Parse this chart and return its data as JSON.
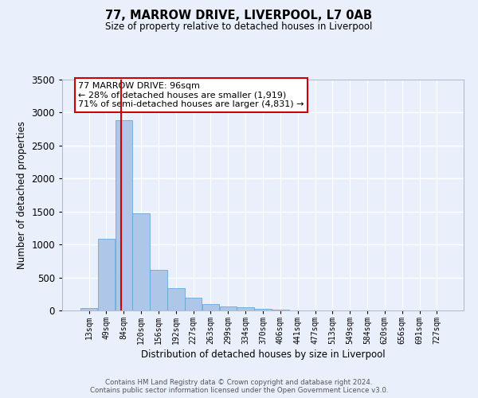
{
  "title": "77, MARROW DRIVE, LIVERPOOL, L7 0AB",
  "subtitle": "Size of property relative to detached houses in Liverpool",
  "xlabel": "Distribution of detached houses by size in Liverpool",
  "ylabel": "Number of detached properties",
  "bin_labels": [
    "13sqm",
    "49sqm",
    "84sqm",
    "120sqm",
    "156sqm",
    "192sqm",
    "227sqm",
    "263sqm",
    "299sqm",
    "334sqm",
    "370sqm",
    "406sqm",
    "441sqm",
    "477sqm",
    "513sqm",
    "549sqm",
    "584sqm",
    "620sqm",
    "656sqm",
    "691sqm",
    "727sqm"
  ],
  "bar_heights": [
    40,
    1090,
    2880,
    1470,
    615,
    335,
    195,
    95,
    65,
    45,
    20,
    15,
    0,
    0,
    0,
    0,
    0,
    0,
    0,
    0,
    0
  ],
  "bar_color": "#aec6e8",
  "bar_edge_color": "#5a9fd4",
  "vline_color": "#cc0000",
  "annotation_text": "77 MARROW DRIVE: 96sqm\n← 28% of detached houses are smaller (1,919)\n71% of semi-detached houses are larger (4,831) →",
  "annotation_box_color": "#ffffff",
  "annotation_box_edge": "#cc0000",
  "ylim": [
    0,
    3500
  ],
  "yticks": [
    0,
    500,
    1000,
    1500,
    2000,
    2500,
    3000,
    3500
  ],
  "background_color": "#eaf0fb",
  "grid_color": "#ffffff",
  "footer_line1": "Contains HM Land Registry data © Crown copyright and database right 2024.",
  "footer_line2": "Contains public sector information licensed under the Open Government Licence v3.0."
}
